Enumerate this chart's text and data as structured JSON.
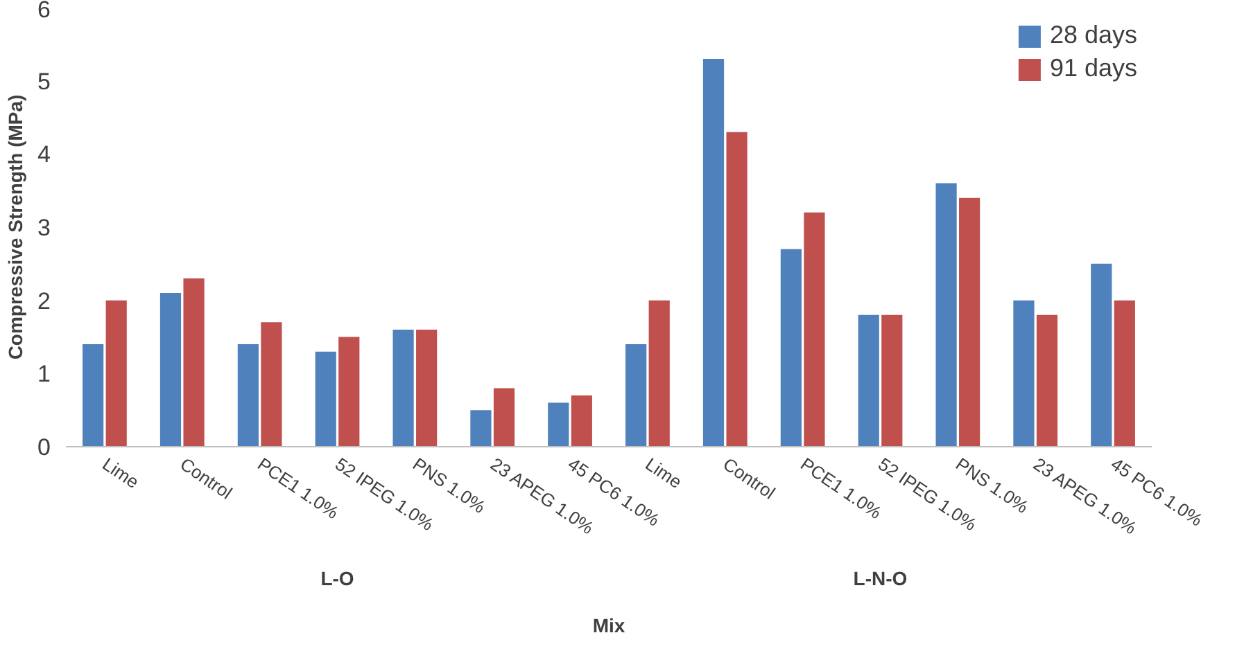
{
  "chart_data": {
    "type": "bar",
    "xlabel": "Mix",
    "ylabel": "Compressive Strength (MPa)",
    "categories": [
      "Lime",
      "Control",
      "PCE1 1.0%",
      "52 IPEG 1.0%",
      "PNS 1.0%",
      "23 APEG 1.0%",
      "45 PC6 1.0%",
      "Lime",
      "Control",
      "PCE1 1.0%",
      "52 IPEG 1.0%",
      "PNS 1.0%",
      "23 APEG 1.0%",
      "45 PC6 1.0%"
    ],
    "annotations": [
      "L-O",
      "L-N-O"
    ],
    "series": [
      {
        "name": "28 days",
        "color": "#4f81bd",
        "values": [
          1.4,
          2.1,
          1.4,
          1.3,
          1.6,
          0.5,
          0.6,
          1.4,
          5.3,
          2.7,
          1.8,
          3.6,
          2.0,
          2.5
        ]
      },
      {
        "name": "91 days",
        "color": "#c0504d",
        "values": [
          2.0,
          2.3,
          1.7,
          1.5,
          1.6,
          0.8,
          0.7,
          2.0,
          4.3,
          3.2,
          1.8,
          3.4,
          1.8,
          2.0
        ]
      }
    ],
    "ylim": [
      0,
      6
    ],
    "yticks": [
      0,
      1,
      2,
      3,
      4,
      5,
      6
    ],
    "grid": false,
    "legend": "top right"
  }
}
